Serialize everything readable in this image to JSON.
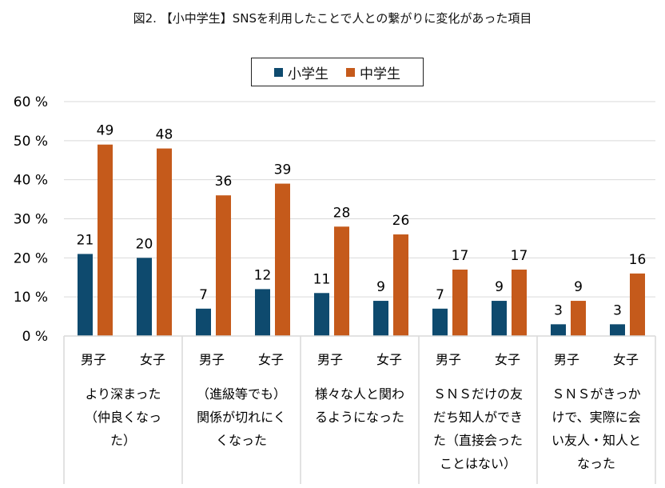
{
  "chart_data": {
    "type": "bar",
    "title": "図2. 【小中学生】SNSを利用したことで人との繋がりに変化があった項目",
    "groups": [
      {
        "label": [
          "より深まった",
          "（仲良くなっ",
          "た）"
        ]
      },
      {
        "label": [
          "（進級等でも）",
          "関係が切れにく",
          "くなった"
        ]
      },
      {
        "label": [
          "様々な人と関わ",
          "るようになった"
        ]
      },
      {
        "label": [
          "ＳＮＳだけの友",
          "だち知人ができ",
          "た（直接会った",
          "ことはない）"
        ]
      },
      {
        "label": [
          "ＳＮＳがきっか",
          "けで、実際に会",
          "い友人・知人と",
          "なった"
        ]
      }
    ],
    "subcategories": [
      "男子",
      "女子",
      "男子",
      "女子",
      "男子",
      "女子",
      "男子",
      "女子",
      "男子",
      "女子"
    ],
    "series": [
      {
        "name": "小学生",
        "color": "#0e4a6e",
        "values": [
          21,
          20,
          7,
          12,
          11,
          9,
          7,
          9,
          3,
          3
        ]
      },
      {
        "name": "中学生",
        "color": "#c55a1b",
        "values": [
          49,
          48,
          36,
          39,
          28,
          26,
          17,
          17,
          9,
          16
        ]
      }
    ],
    "yticks": [
      "0 %",
      "10 %",
      "20 %",
      "30 %",
      "40 %",
      "50 %",
      "60 %"
    ],
    "ylim": [
      0,
      60
    ],
    "grid": true,
    "legend_position": "top"
  }
}
